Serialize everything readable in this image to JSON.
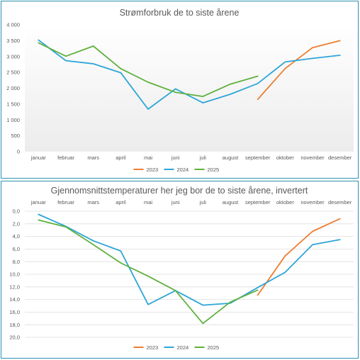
{
  "colors": {
    "s2023": "#ED7D31",
    "s2024": "#2EA5D8",
    "s2025": "#5FB13E",
    "grid": "#dedede",
    "text": "#595959",
    "border": "#2e8fb0"
  },
  "chart_data": [
    {
      "type": "line",
      "title": "Strømforbruk de to siste årene",
      "categories": [
        "januar",
        "februar",
        "mars",
        "april",
        "mai",
        "juni",
        "juli",
        "august",
        "september",
        "oktober",
        "november",
        "desember"
      ],
      "ylim": [
        0,
        4000
      ],
      "yticks": [
        "0",
        "500",
        "1 000",
        "1 500",
        "2 000",
        "2 500",
        "3 000",
        "3 500",
        "4 000"
      ],
      "inverted": false,
      "grid": "none",
      "legend": "bottom",
      "series": [
        {
          "name": "2023",
          "color": "#ED7D31",
          "values": [
            null,
            null,
            null,
            null,
            null,
            null,
            null,
            null,
            1650,
            2620,
            3280,
            3500
          ]
        },
        {
          "name": "2024",
          "color": "#2EA5D8",
          "values": [
            3520,
            2870,
            2770,
            2490,
            1340,
            1980,
            1540,
            1810,
            2150,
            2830,
            2940,
            3040
          ]
        },
        {
          "name": "2025",
          "color": "#5FB13E",
          "values": [
            3430,
            3010,
            3330,
            2620,
            2190,
            1870,
            1740,
            2130,
            2380,
            null,
            null,
            null
          ]
        }
      ]
    },
    {
      "type": "line",
      "title": "Gjennomsnittstemperaturer her jeg bor de to siste årene, invertert",
      "categories": [
        "januar",
        "februar",
        "mars",
        "april",
        "mai",
        "juni",
        "juli",
        "august",
        "september",
        "oktober",
        "november",
        "desember"
      ],
      "ylim": [
        0,
        20
      ],
      "yticks": [
        "0,0",
        "2,0",
        "4,0",
        "6,0",
        "8,0",
        "10,0",
        "12,0",
        "14,0",
        "16,0",
        "18,0",
        "20,0"
      ],
      "inverted": true,
      "grid": "horizontal",
      "legend": "bottom",
      "series": [
        {
          "name": "2023",
          "color": "#ED7D31",
          "values": [
            null,
            null,
            null,
            null,
            null,
            null,
            null,
            null,
            13.3,
            7.1,
            3.2,
            1.2
          ]
        },
        {
          "name": "2024",
          "color": "#2EA5D8",
          "values": [
            0.5,
            2.4,
            4.7,
            6.3,
            14.8,
            12.6,
            14.9,
            14.6,
            12.1,
            9.7,
            5.3,
            4.5
          ]
        },
        {
          "name": "2025",
          "color": "#5FB13E",
          "values": [
            1.4,
            2.5,
            5.3,
            8.2,
            10.3,
            12.6,
            17.8,
            14.4,
            12.5,
            null,
            null,
            null
          ]
        }
      ]
    }
  ]
}
